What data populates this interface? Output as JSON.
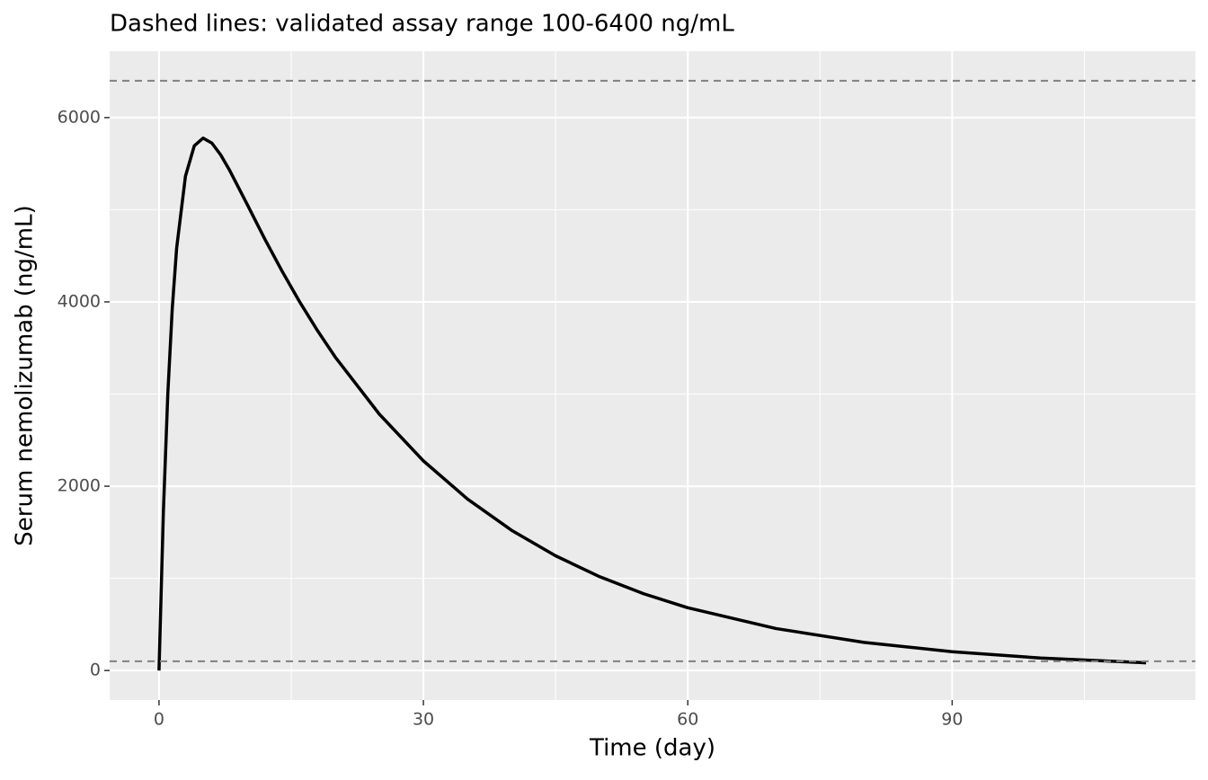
{
  "chart_data": {
    "type": "line",
    "title": "Dashed lines: validated assay range 100-6400 ng/mL",
    "x_label": "Time (day)",
    "y_label": "Serum nemolizumab (ng/mL)",
    "x": [
      0,
      0.5,
      1,
      1.5,
      2,
      3,
      4,
      5,
      6,
      7,
      8,
      10,
      12,
      14,
      16,
      18,
      20,
      25,
      30,
      35,
      40,
      45,
      50,
      55,
      60,
      70,
      80,
      90,
      100,
      112
    ],
    "series": [
      {
        "name": "Serum nemolizumab",
        "color": "#000000",
        "values": [
          0,
          1734,
          3003,
          3923,
          4583,
          5363,
          5693,
          5777,
          5723,
          5595,
          5430,
          5059,
          4683,
          4327,
          3994,
          3686,
          3401,
          2782,
          2275,
          1861,
          1522,
          1245,
          1018,
          833,
          681,
          456,
          305,
          204,
          136,
          84
        ]
      }
    ],
    "hlines": [
      100,
      6400
    ],
    "hline_color": "#808080",
    "xlim": [
      -5.6,
      117.6
    ],
    "xticks": [
      0,
      30,
      60,
      90
    ],
    "ylim": [
      -320,
      6720
    ],
    "yticks": [
      0,
      2000,
      4000,
      6000
    ],
    "grid": true
  }
}
